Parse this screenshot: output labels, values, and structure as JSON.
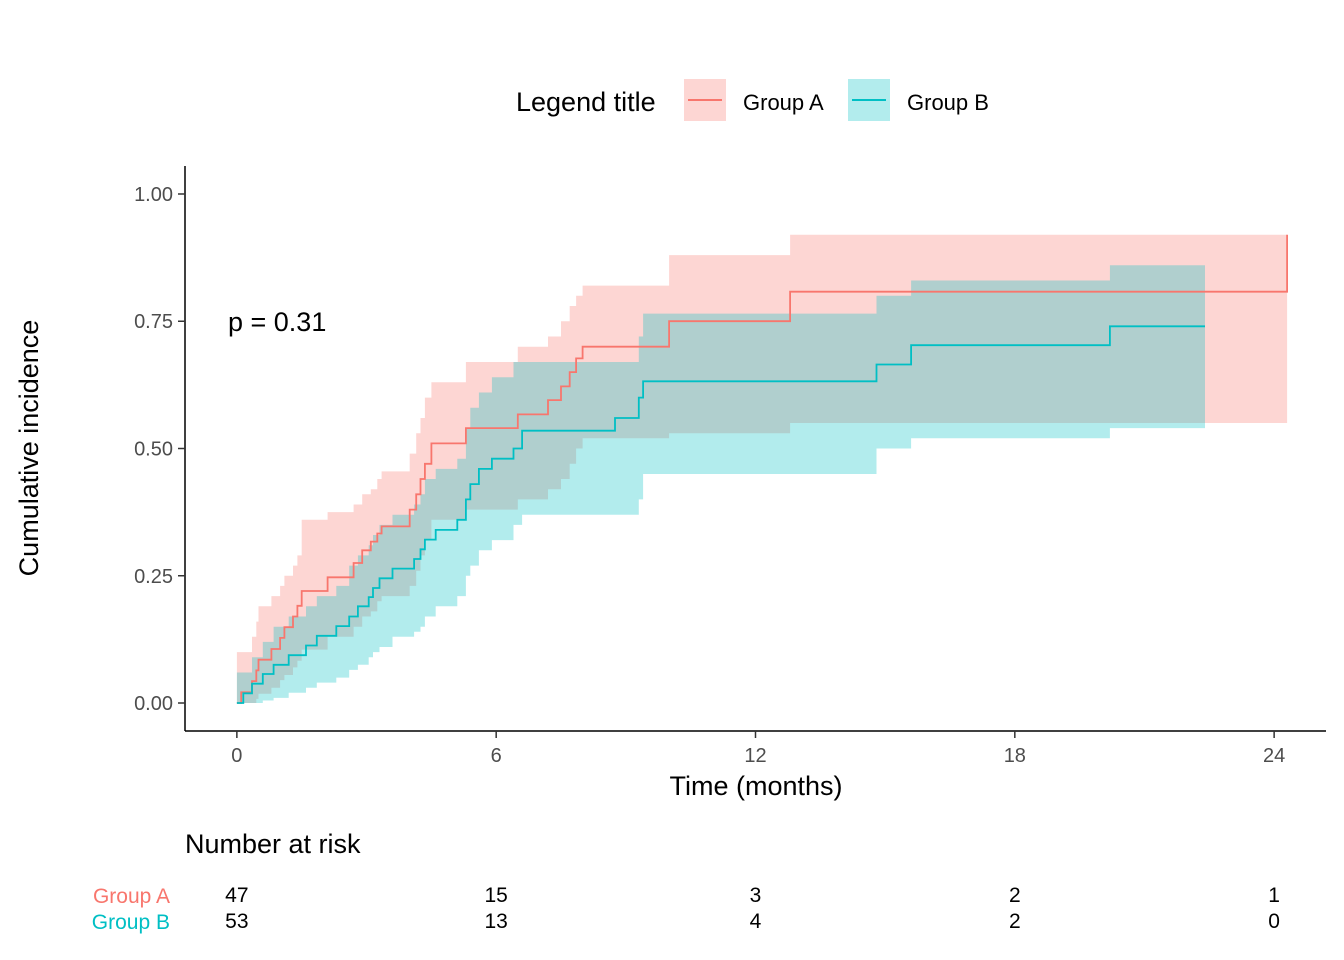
{
  "chart_data": {
    "type": "line",
    "subtype": "cumulative-incidence-step",
    "title": "",
    "xlabel": "Time (months)",
    "ylabel": "Cumulative incidence",
    "xlim": [
      -1.2,
      25.2
    ],
    "ylim": [
      -0.055,
      1.055
    ],
    "x_ticks": [
      0,
      6,
      12,
      18,
      24
    ],
    "y_ticks": [
      0.0,
      0.25,
      0.5,
      0.75,
      1.0
    ],
    "y_tick_labels": [
      "0.00",
      "0.25",
      "0.50",
      "0.75",
      "1.00"
    ],
    "grid": false,
    "legend": {
      "title": "Legend title",
      "position": "top",
      "entries": [
        "Group A",
        "Group B"
      ]
    },
    "annotation": "p = 0.31",
    "series": [
      {
        "name": "Group A",
        "color": "#F8766D",
        "x": [
          0,
          0.1,
          0.35,
          0.45,
          0.5,
          0.8,
          1.0,
          1.1,
          1.3,
          1.4,
          1.5,
          2.1,
          2.7,
          2.9,
          3.1,
          3.25,
          3.35,
          4.0,
          4.15,
          4.25,
          4.35,
          4.5,
          5.3,
          6.5,
          7.2,
          7.5,
          7.7,
          7.85,
          8.0,
          8.55,
          10.0,
          12.8,
          24.3
        ],
        "y": [
          0.0,
          0.021,
          0.043,
          0.064,
          0.085,
          0.106,
          0.128,
          0.149,
          0.17,
          0.191,
          0.22,
          0.247,
          0.275,
          0.3,
          0.317,
          0.333,
          0.347,
          0.38,
          0.41,
          0.44,
          0.47,
          0.51,
          0.54,
          0.567,
          0.595,
          0.622,
          0.65,
          0.677,
          0.7,
          0.7,
          0.75,
          0.808,
          0.92
        ],
        "lower": [
          0.0,
          0.0,
          0.0,
          0.008,
          0.018,
          0.03,
          0.045,
          0.055,
          0.07,
          0.083,
          0.105,
          0.13,
          0.15,
          0.17,
          0.18,
          0.2,
          0.21,
          0.23,
          0.26,
          0.29,
          0.32,
          0.36,
          0.38,
          0.4,
          0.42,
          0.44,
          0.47,
          0.5,
          0.52,
          0.52,
          0.53,
          0.55,
          0.555
        ],
        "upper": [
          0.1,
          0.1,
          0.13,
          0.16,
          0.19,
          0.21,
          0.23,
          0.25,
          0.27,
          0.29,
          0.36,
          0.375,
          0.39,
          0.41,
          0.42,
          0.44,
          0.455,
          0.49,
          0.53,
          0.56,
          0.6,
          0.63,
          0.67,
          0.7,
          0.72,
          0.75,
          0.78,
          0.8,
          0.82,
          0.82,
          0.88,
          0.92,
          0.92
        ]
      },
      {
        "name": "Group B",
        "color": "#00BFC4",
        "x": [
          0,
          0.15,
          0.35,
          0.6,
          0.85,
          1.2,
          1.6,
          1.85,
          2.3,
          2.6,
          2.8,
          3.05,
          3.15,
          3.3,
          3.6,
          4.1,
          4.25,
          4.35,
          4.6,
          5.1,
          5.3,
          5.4,
          5.6,
          5.9,
          6.4,
          6.6,
          8.75,
          9.3,
          9.4,
          14.8,
          15.6,
          20.2,
          22.4
        ],
        "y": [
          0.0,
          0.019,
          0.038,
          0.057,
          0.075,
          0.094,
          0.113,
          0.132,
          0.151,
          0.17,
          0.19,
          0.208,
          0.226,
          0.245,
          0.264,
          0.283,
          0.302,
          0.321,
          0.34,
          0.36,
          0.4,
          0.43,
          0.46,
          0.48,
          0.5,
          0.535,
          0.56,
          0.6,
          0.632,
          0.665,
          0.703,
          0.74,
          0.74
        ],
        "lower": [
          0.0,
          0.0,
          0.0,
          0.005,
          0.01,
          0.02,
          0.03,
          0.04,
          0.05,
          0.065,
          0.075,
          0.09,
          0.1,
          0.11,
          0.13,
          0.14,
          0.15,
          0.17,
          0.19,
          0.21,
          0.25,
          0.27,
          0.3,
          0.32,
          0.35,
          0.37,
          0.37,
          0.4,
          0.45,
          0.5,
          0.52,
          0.54,
          0.545
        ],
        "upper": [
          0.06,
          0.06,
          0.09,
          0.12,
          0.15,
          0.17,
          0.19,
          0.21,
          0.23,
          0.27,
          0.29,
          0.31,
          0.33,
          0.35,
          0.37,
          0.39,
          0.41,
          0.44,
          0.46,
          0.48,
          0.54,
          0.58,
          0.61,
          0.64,
          0.67,
          0.67,
          0.67,
          0.72,
          0.765,
          0.8,
          0.83,
          0.86,
          0.86
        ]
      }
    ],
    "risk_table": {
      "title": "Number at risk",
      "times": [
        0,
        6,
        12,
        18,
        24
      ],
      "rows": [
        {
          "name": "Group A",
          "color": "#F8766D",
          "values": [
            47,
            15,
            3,
            2,
            1
          ]
        },
        {
          "name": "Group B",
          "color": "#00BFC4",
          "values": [
            53,
            13,
            4,
            2,
            0
          ]
        }
      ]
    }
  }
}
